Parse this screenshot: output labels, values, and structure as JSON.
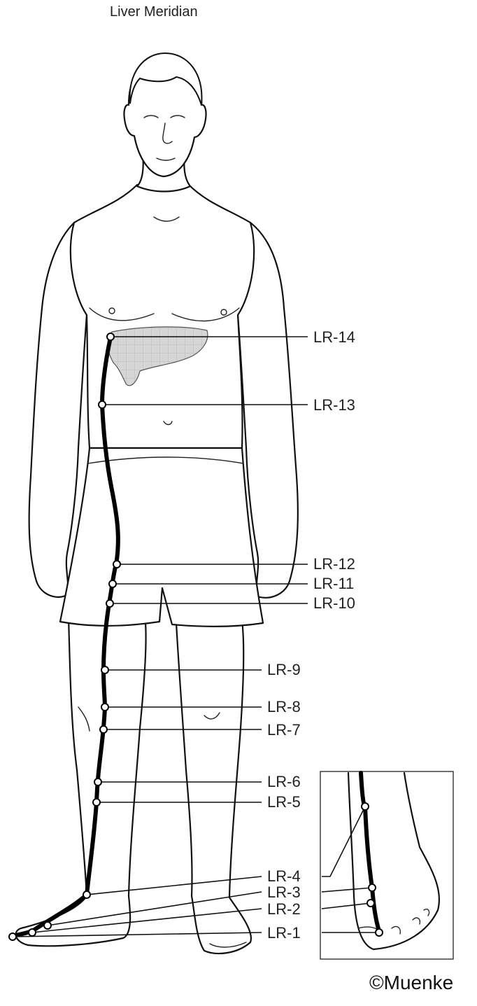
{
  "title": "Liver Meridian",
  "credit": "©Muenke",
  "points": [
    {
      "label": "LR-14"
    },
    {
      "label": "LR-13"
    },
    {
      "label": "LR-12"
    },
    {
      "label": "LR-11"
    },
    {
      "label": "LR-10"
    },
    {
      "label": "LR-9"
    },
    {
      "label": "LR-8"
    },
    {
      "label": "LR-7"
    },
    {
      "label": "LR-6"
    },
    {
      "label": "LR-5"
    },
    {
      "label": "LR-4"
    },
    {
      "label": "LR-3"
    },
    {
      "label": "LR-2"
    },
    {
      "label": "LR-1"
    }
  ],
  "colors": {
    "liver_fill": "#d4d4d4",
    "ink": "#111111",
    "point_fill": "#ffffff"
  }
}
